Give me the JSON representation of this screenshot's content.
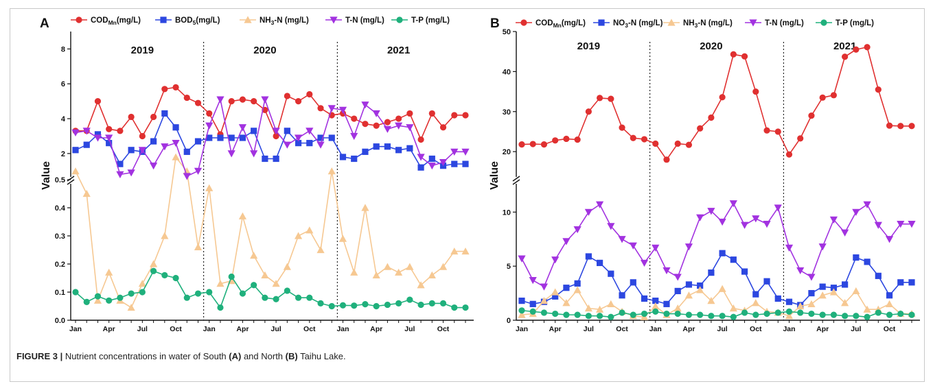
{
  "caption": {
    "label": "FIGURE 3 |",
    "part1": " Nutrient concentrations in water of South ",
    "labelA": "(A)",
    "part2": " and North ",
    "labelB": "(B)",
    "part3": " Taihu Lake."
  },
  "chart_data": [
    {
      "panel": "A",
      "type": "line",
      "ylabel": "Value",
      "years": [
        "2019",
        "2020",
        "2021"
      ],
      "x_ticks": [
        "Jan",
        "Apr",
        "Jul",
        "Oct",
        "Jan",
        "Apr",
        "Jul",
        "Oct",
        "Jan",
        "Apr",
        "Jul",
        "Oct"
      ],
      "y_upper": {
        "range": [
          0.5,
          9
        ],
        "ticks": [
          "2",
          "4",
          "6",
          "8"
        ]
      },
      "y_lower": {
        "range": [
          0,
          0.5
        ],
        "ticks": [
          "0.0",
          "0.1",
          "0.2",
          "0.3",
          "0.4",
          "0.5"
        ]
      },
      "x": [
        1,
        2,
        3,
        4,
        5,
        6,
        7,
        8,
        9,
        10,
        11,
        12,
        13,
        14,
        15,
        16,
        17,
        18,
        19,
        20,
        21,
        22,
        23,
        24,
        25,
        26,
        27,
        28,
        29,
        30,
        31,
        32,
        33,
        34,
        35,
        36
      ],
      "series": [
        {
          "name": "COD",
          "sub": "Mn",
          "unit": "(mg/L)",
          "color": "#e03030",
          "marker": "circle",
          "axis": "upper",
          "values": [
            3.3,
            3.3,
            5.0,
            3.4,
            3.3,
            4.1,
            3.0,
            4.1,
            5.7,
            5.8,
            5.2,
            4.9,
            4.3,
            3.1,
            5.0,
            5.1,
            5.0,
            4.5,
            3.0,
            5.3,
            5.0,
            5.4,
            4.6,
            4.2,
            4.3,
            4.0,
            3.7,
            3.6,
            3.8,
            4.0,
            4.3,
            2.8,
            4.3,
            3.5,
            4.2,
            4.2
          ]
        },
        {
          "name": "BOD",
          "sub": "5",
          "unit": "(mg/L)",
          "color": "#2c47e0",
          "marker": "square",
          "axis": "upper",
          "values": [
            2.2,
            2.5,
            3.1,
            2.6,
            1.4,
            2.2,
            2.1,
            2.7,
            4.3,
            3.5,
            2.1,
            2.7,
            2.9,
            2.9,
            2.9,
            2.9,
            3.3,
            1.7,
            1.7,
            3.3,
            2.6,
            2.6,
            2.9,
            2.9,
            1.8,
            1.7,
            2.1,
            2.4,
            2.4,
            2.2,
            2.3,
            1.2,
            1.7,
            1.3,
            1.4,
            1.4
          ]
        },
        {
          "name": "NH",
          "sub": "3",
          "unit": "-N (mg/L)",
          "color": "#f6c892",
          "marker": "triangle-up",
          "axis": "lower",
          "values": [
            0.53,
            0.45,
            0.07,
            0.17,
            0.07,
            0.045,
            0.13,
            0.2,
            0.3,
            0.58,
            0.53,
            0.26,
            0.47,
            0.13,
            0.14,
            0.37,
            0.23,
            0.16,
            0.13,
            0.19,
            0.3,
            0.32,
            0.25,
            0.53,
            0.29,
            0.17,
            0.4,
            0.16,
            0.19,
            0.17,
            0.19,
            0.125,
            0.16,
            0.19,
            0.245,
            0.245
          ]
        },
        {
          "name": "T-N",
          "sub": "",
          "unit": " (mg/L)",
          "color": "#a232e0",
          "marker": "triangle-down",
          "axis": "upper",
          "values": [
            3.2,
            3.3,
            2.9,
            2.9,
            0.8,
            0.9,
            2.2,
            1.3,
            2.4,
            2.6,
            0.7,
            1.0,
            3.6,
            5.1,
            2.0,
            3.5,
            2.0,
            5.1,
            3.3,
            2.5,
            2.9,
            3.3,
            2.5,
            4.6,
            4.5,
            3.0,
            4.8,
            4.3,
            3.4,
            3.6,
            3.5,
            1.8,
            1.3,
            1.5,
            2.1,
            2.1
          ]
        },
        {
          "name": "T-P",
          "sub": "",
          "unit": " (mg/L)",
          "color": "#1fb07c",
          "marker": "circle",
          "axis": "lower",
          "values": [
            0.1,
            0.065,
            0.085,
            0.07,
            0.08,
            0.095,
            0.1,
            0.175,
            0.16,
            0.15,
            0.08,
            0.095,
            0.1,
            0.045,
            0.155,
            0.095,
            0.125,
            0.08,
            0.075,
            0.105,
            0.08,
            0.08,
            0.06,
            0.05,
            0.053,
            0.052,
            0.057,
            0.05,
            0.055,
            0.06,
            0.073,
            0.055,
            0.06,
            0.06,
            0.045,
            0.045
          ]
        }
      ]
    },
    {
      "panel": "B",
      "type": "line",
      "ylabel": "Value",
      "years": [
        "2019",
        "2020",
        "2021"
      ],
      "x_ticks": [
        "Jan",
        "Apr",
        "Jul",
        "Oct",
        "Jan",
        "Apr",
        "Jul",
        "Oct",
        "Jan",
        "Apr",
        "Jul",
        "Oct"
      ],
      "y_upper": {
        "range": [
          13,
          50
        ],
        "ticks": [
          "20",
          "30",
          "40",
          "50"
        ]
      },
      "y_lower": {
        "range": [
          0,
          13
        ],
        "ticks": [
          "0",
          "5",
          "10"
        ]
      },
      "x": [
        1,
        2,
        3,
        4,
        5,
        6,
        7,
        8,
        9,
        10,
        11,
        12,
        13,
        14,
        15,
        16,
        17,
        18,
        19,
        20,
        21,
        22,
        23,
        24,
        25,
        26,
        27,
        28,
        29,
        30,
        31,
        32,
        33,
        34,
        35,
        36
      ],
      "series": [
        {
          "name": "COD",
          "sub": "Mn",
          "unit": "(mg/L)",
          "color": "#e03030",
          "marker": "circle",
          "axis": "upper",
          "values": [
            21.8,
            21.9,
            21.8,
            22.8,
            23.2,
            23.0,
            30.0,
            33.4,
            33.2,
            26.0,
            23.4,
            23.1,
            22.0,
            18.0,
            22.0,
            21.7,
            25.8,
            28.5,
            33.6,
            44.3,
            43.8,
            35.0,
            25.3,
            25.0,
            19.3,
            23.3,
            29.0,
            33.5,
            34.1,
            43.7,
            45.5,
            46.1,
            35.5,
            26.5,
            26.4,
            26.4
          ]
        },
        {
          "name": "NO",
          "sub": "3",
          "unit": "-N (mg/L)",
          "color": "#2c47e0",
          "marker": "square",
          "axis": "lower",
          "values": [
            1.8,
            1.5,
            1.7,
            2.2,
            3.0,
            3.4,
            5.9,
            5.3,
            4.3,
            2.3,
            3.5,
            2.0,
            1.8,
            1.5,
            2.7,
            3.3,
            3.2,
            4.4,
            6.2,
            5.6,
            4.5,
            2.4,
            3.6,
            2.0,
            1.7,
            1.4,
            2.5,
            3.1,
            3.0,
            3.3,
            5.8,
            5.4,
            4.1,
            2.3,
            3.5,
            3.5
          ]
        },
        {
          "name": "NH",
          "sub": "3",
          "unit": "-N (mg/L)",
          "color": "#f6c892",
          "marker": "triangle-up",
          "axis": "lower",
          "values": [
            0.5,
            0.6,
            1.8,
            2.6,
            1.6,
            2.8,
            1.1,
            1.0,
            1.5,
            0.8,
            0.4,
            0.3,
            1.3,
            0.5,
            1.1,
            2.3,
            2.8,
            1.8,
            2.9,
            1.1,
            0.9,
            1.6,
            0.8,
            0.7,
            0.4,
            1.3,
            1.5,
            2.3,
            2.6,
            1.6,
            2.7,
            1.0,
            1.0,
            1.5,
            0.6,
            0.6
          ]
        },
        {
          "name": "T-N",
          "sub": "",
          "unit": "  (mg/L)",
          "color": "#a232e0",
          "marker": "triangle-down",
          "axis": "lower",
          "values": [
            5.7,
            3.7,
            3.1,
            5.6,
            7.3,
            8.4,
            10.0,
            10.7,
            8.7,
            7.5,
            6.9,
            5.3,
            6.7,
            4.6,
            4.0,
            6.8,
            9.5,
            10.1,
            9.1,
            10.8,
            8.8,
            9.4,
            8.9,
            10.4,
            6.7,
            4.6,
            4.0,
            6.8,
            9.3,
            8.1,
            10.0,
            10.7,
            8.8,
            7.5,
            8.9,
            8.9
          ]
        },
        {
          "name": "T-P",
          "sub": "",
          "unit": " (mg/L)",
          "color": "#1fb07c",
          "marker": "circle",
          "axis": "lower",
          "values": [
            0.9,
            0.8,
            0.7,
            0.6,
            0.5,
            0.5,
            0.4,
            0.4,
            0.3,
            0.7,
            0.5,
            0.6,
            0.8,
            0.6,
            0.6,
            0.5,
            0.5,
            0.4,
            0.4,
            0.3,
            0.7,
            0.5,
            0.6,
            0.7,
            0.8,
            0.7,
            0.6,
            0.5,
            0.5,
            0.4,
            0.4,
            0.3,
            0.7,
            0.5,
            0.6,
            0.5
          ]
        }
      ]
    }
  ]
}
